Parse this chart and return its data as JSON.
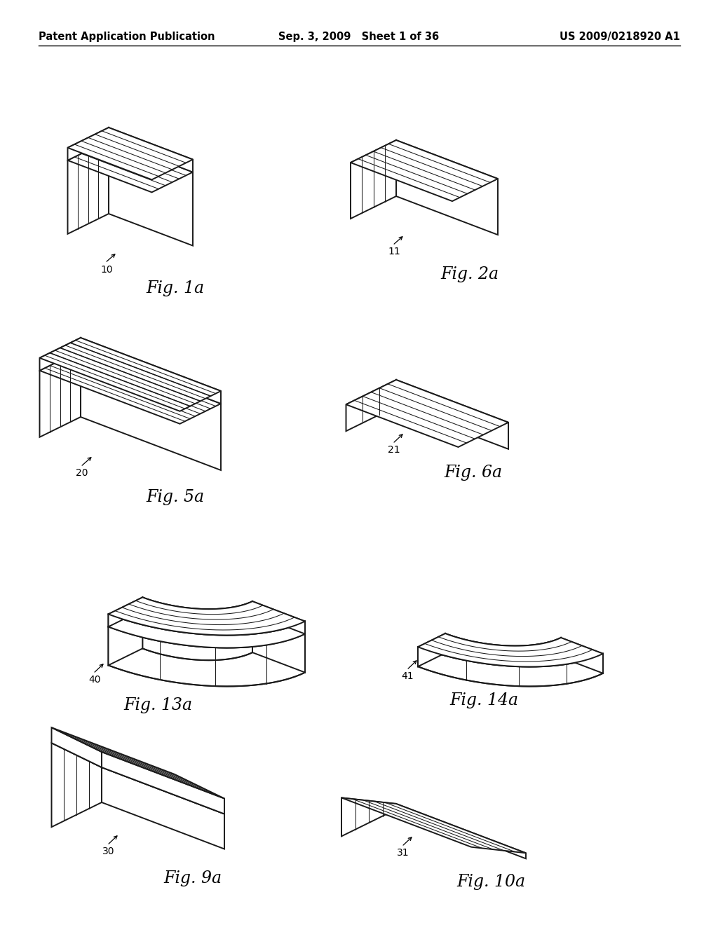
{
  "background_color": "#ffffff",
  "header_left": "Patent Application Publication",
  "header_mid": "Sep. 3, 2009   Sheet 1 of 36",
  "header_right": "US 2009/0218920 A1",
  "header_fontsize": 10.5,
  "line_color": "#1a1a1a",
  "line_width": 1.4,
  "hatch_lw": 0.75,
  "figures": [
    {
      "label": "10",
      "caption": "Fig. 1a",
      "col": 0,
      "row": 0
    },
    {
      "label": "11",
      "caption": "Fig. 2a",
      "col": 1,
      "row": 0
    },
    {
      "label": "20",
      "caption": "Fig. 5a",
      "col": 0,
      "row": 1
    },
    {
      "label": "21",
      "caption": "Fig. 6a",
      "col": 1,
      "row": 1
    },
    {
      "label": "40",
      "caption": "Fig. 13a",
      "col": 0,
      "row": 2
    },
    {
      "label": "41",
      "caption": "Fig. 14a",
      "col": 1,
      "row": 2
    },
    {
      "label": "30",
      "caption": "Fig. 9a",
      "col": 0,
      "row": 3
    },
    {
      "label": "31",
      "caption": "Fig. 10a",
      "col": 1,
      "row": 3
    }
  ],
  "caption_fontsize": 17,
  "label_fontsize": 10
}
